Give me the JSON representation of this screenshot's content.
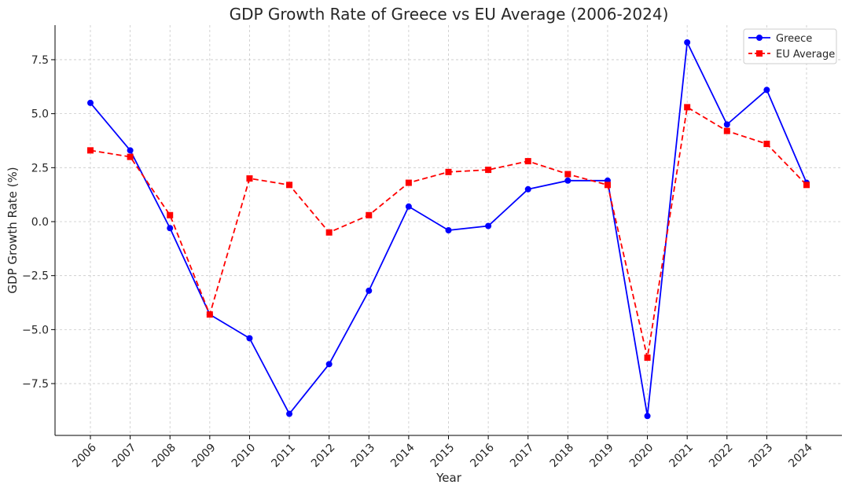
{
  "chart_data": {
    "type": "line",
    "title": "GDP Growth Rate of Greece vs EU Average (2006-2024)",
    "xlabel": "Year",
    "ylabel": "GDP Growth Rate (%)",
    "x": [
      2006,
      2007,
      2008,
      2009,
      2010,
      2011,
      2012,
      2013,
      2014,
      2015,
      2016,
      2017,
      2018,
      2019,
      2020,
      2021,
      2022,
      2023,
      2024
    ],
    "ylim": [
      -9.9,
      9.1
    ],
    "yticks": [
      -7.5,
      -5.0,
      -2.5,
      0.0,
      2.5,
      5.0,
      7.5
    ],
    "ytick_labels": [
      "−7.5",
      "−5.0",
      "−2.5",
      "0.0",
      "2.5",
      "5.0",
      "7.5"
    ],
    "grid": true,
    "legend_position": "top-right",
    "series": [
      {
        "name": "Greece",
        "color": "#0000ff",
        "line_style": "solid",
        "marker": "circle",
        "values": [
          5.5,
          3.3,
          -0.3,
          -4.3,
          -5.4,
          -8.9,
          -6.6,
          -3.2,
          0.7,
          -0.4,
          -0.2,
          1.5,
          1.9,
          1.9,
          -9.0,
          8.3,
          4.5,
          6.1,
          1.8
        ]
      },
      {
        "name": "EU Average",
        "color": "#ff0000",
        "line_style": "dashed",
        "marker": "square",
        "values": [
          3.3,
          3.0,
          0.3,
          -4.3,
          2.0,
          1.7,
          -0.5,
          0.3,
          1.8,
          2.3,
          2.4,
          2.8,
          2.2,
          1.7,
          -6.3,
          5.3,
          4.2,
          3.6,
          1.7
        ]
      }
    ]
  }
}
